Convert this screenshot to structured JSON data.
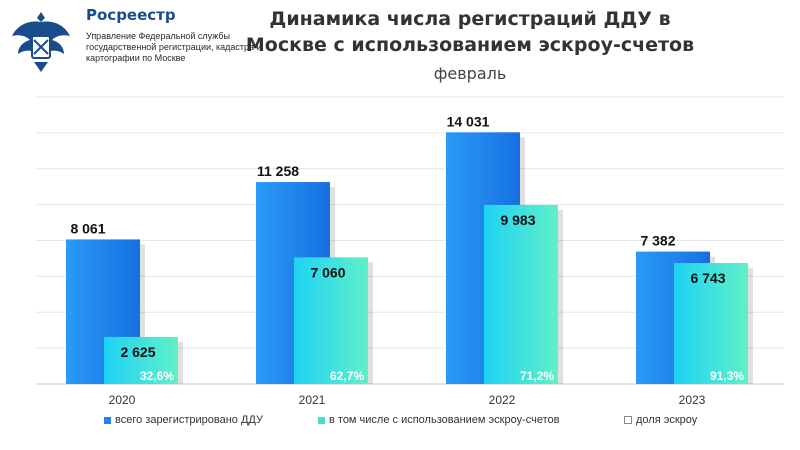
{
  "header": {
    "org_name": "Росреестр",
    "org_subtitle": "Управление Федеральной службы государственной регистрации, кадастра и картографии по Москве"
  },
  "colors": {
    "total_bar": "#1f84f0",
    "escrow_bar": "#3fe3cf",
    "share_label": "#ffffff",
    "logo_blue": "#1a4c8b"
  },
  "chart_data": {
    "type": "bar",
    "title": "Динамика числа регистраций ДДУ в Москве с использованием эскроу-счетов",
    "subtitle": "февраль",
    "categories": [
      "2020",
      "2021",
      "2022",
      "2023"
    ],
    "series": [
      {
        "name": "всего зарегистрировано ДДУ",
        "values": [
          8061,
          11258,
          14031,
          7382
        ],
        "labels": [
          "8 061",
          "11 258",
          "14 031",
          "7 382"
        ]
      },
      {
        "name": "в том числе с использованием эскроу-счетов",
        "values": [
          2625,
          7060,
          9983,
          6743
        ],
        "labels": [
          "2 625",
          "7 060",
          "9 983",
          "6 743"
        ]
      },
      {
        "name": "доля эскроу",
        "values": [
          32.6,
          62.7,
          71.2,
          91.3
        ],
        "labels": [
          "32,6%",
          "62,7%",
          "71,2%",
          "91,3%"
        ]
      }
    ],
    "ylim": [
      0,
      16000
    ],
    "grid": true,
    "legend_position": "bottom"
  }
}
